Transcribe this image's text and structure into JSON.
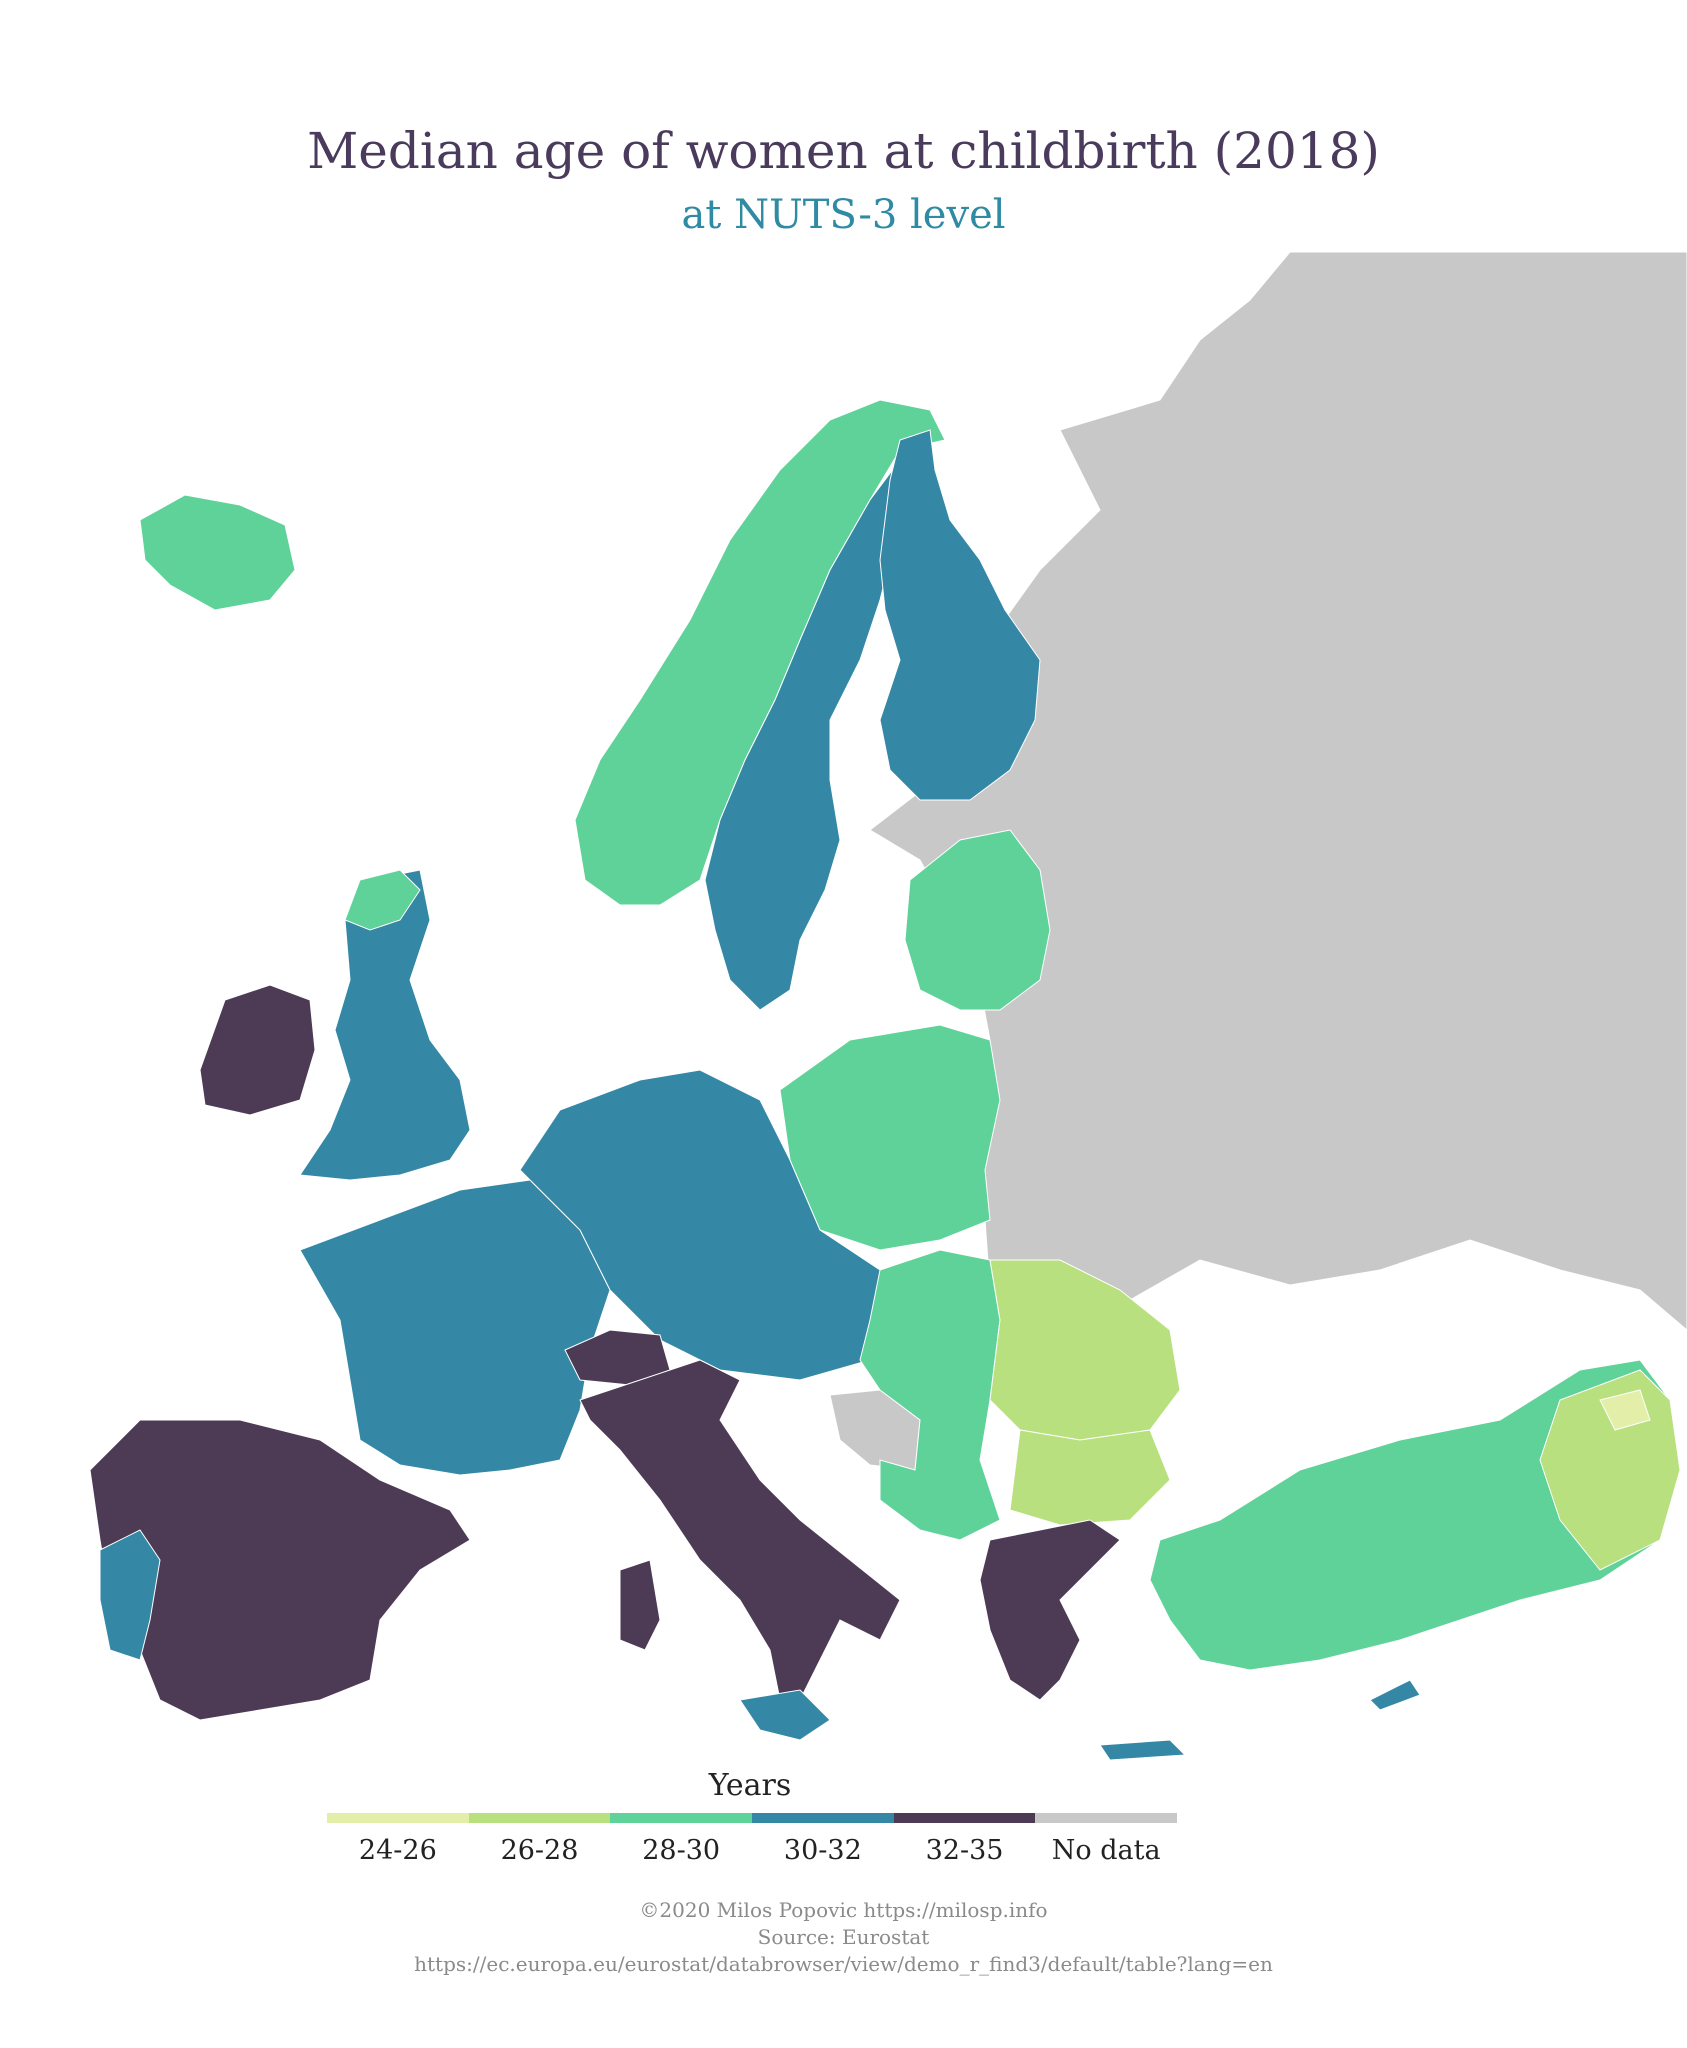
{
  "title": "Median age of women at childbirth (2018)",
  "subtitle": "at NUTS-3 level",
  "legend": {
    "title": "Years",
    "classes": [
      {
        "label": "24-26",
        "color": "#e3efa8"
      },
      {
        "label": "26-28",
        "color": "#b8e07e"
      },
      {
        "label": "28-30",
        "color": "#5fd29a"
      },
      {
        "label": "30-32",
        "color": "#3488a6"
      },
      {
        "label": "32-35",
        "color": "#4d3b56"
      },
      {
        "label": "No data",
        "color": "#c8c8c8"
      }
    ]
  },
  "credits": {
    "line1": "©2020 Milos Popovic https://milosp.info",
    "line2": "Source: Eurostat",
    "line3": "https://ec.europa.eu/eurostat/databrowser/view/demo_r_find3/default/table?lang=en"
  },
  "regions": {
    "russia_east": "no data",
    "iceland": "28-30",
    "ireland": "32-35",
    "uk": "30-32",
    "norway": "28-30",
    "sweden": "30-32",
    "finland": "30-32",
    "baltics": "28-30",
    "poland": "28-30",
    "germany": "30-32",
    "france": "30-32",
    "iberia": "32-35",
    "italy": "32-35",
    "switzerland": "32-35",
    "balkans": "28-30",
    "romania": "26-28",
    "bulgaria": "26-28",
    "greece": "32-35",
    "turkey": "28-30",
    "turkey_east": "26-28",
    "bosnia": "no data"
  }
}
